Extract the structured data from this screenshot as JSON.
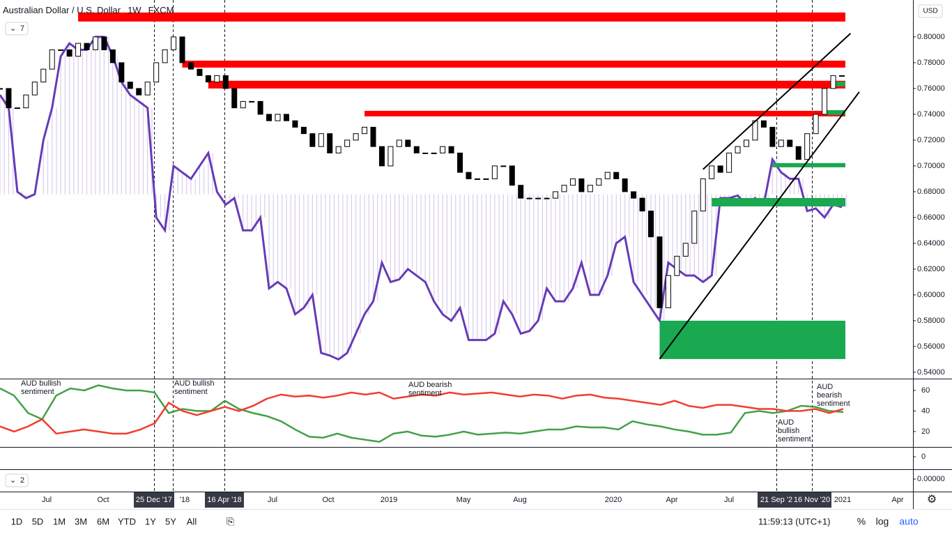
{
  "chart_data": {
    "type": "candlestick",
    "title": "Australian Dollar / U.S. Dollar",
    "interval": "1W",
    "source": "FXCM",
    "indicator_count": "7",
    "collapsed_count": "2",
    "currency": "USD",
    "ylim": [
      0.5351,
      0.8286
    ],
    "yticks": [
      {
        "value": 0.54,
        "label": "0.54000"
      },
      {
        "value": 0.56,
        "label": "0.56000"
      },
      {
        "value": 0.58,
        "label": "0.58000"
      },
      {
        "value": 0.6,
        "label": "0.60000"
      },
      {
        "value": 0.62,
        "label": "0.62000"
      },
      {
        "value": 0.64,
        "label": "0.64000"
      },
      {
        "value": 0.66,
        "label": "0.66000"
      },
      {
        "value": 0.68,
        "label": "0.68000"
      },
      {
        "value": 0.7,
        "label": "0.70000"
      },
      {
        "value": 0.72,
        "label": "0.72000"
      },
      {
        "value": 0.74,
        "label": "0.74000"
      },
      {
        "value": 0.76,
        "label": "0.76000"
      },
      {
        "value": 0.78,
        "label": "0.78000"
      },
      {
        "value": 0.8,
        "label": "0.80000"
      }
    ],
    "up_color": "#ffffff",
    "down_color": "#000000",
    "values": [
      0.76,
      0.745,
      0.745,
      0.755,
      0.765,
      0.775,
      0.79,
      0.79,
      0.785,
      0.795,
      0.79,
      0.8,
      0.79,
      0.78,
      0.765,
      0.76,
      0.755,
      0.765,
      0.78,
      0.79,
      0.8,
      0.78,
      0.775,
      0.77,
      0.765,
      0.77,
      0.76,
      0.745,
      0.75,
      0.75,
      0.74,
      0.735,
      0.74,
      0.735,
      0.73,
      0.725,
      0.715,
      0.725,
      0.71,
      0.715,
      0.72,
      0.725,
      0.73,
      0.715,
      0.7,
      0.715,
      0.72,
      0.715,
      0.71,
      0.71,
      0.71,
      0.715,
      0.71,
      0.695,
      0.69,
      0.69,
      0.69,
      0.7,
      0.7,
      0.685,
      0.675,
      0.675,
      0.675,
      0.675,
      0.68,
      0.685,
      0.69,
      0.68,
      0.685,
      0.69,
      0.695,
      0.69,
      0.68,
      0.675,
      0.665,
      0.645,
      0.59,
      0.615,
      0.63,
      0.64,
      0.665,
      0.69,
      0.7,
      0.695,
      0.71,
      0.715,
      0.72,
      0.735,
      0.73,
      0.715,
      0.72,
      0.715,
      0.705,
      0.725,
      0.74,
      0.76,
      0.77,
      0.77
    ],
    "positioning": {
      "color": "#673ab7",
      "fill": "#d9cdee",
      "baseline": 0.678,
      "values": [
        0.755,
        0.745,
        0.68,
        0.675,
        0.678,
        0.72,
        0.745,
        0.785,
        0.795,
        0.79,
        0.79,
        0.8,
        0.8,
        0.785,
        0.765,
        0.755,
        0.75,
        0.745,
        0.66,
        0.65,
        0.7,
        0.695,
        0.69,
        0.7,
        0.71,
        0.68,
        0.67,
        0.675,
        0.65,
        0.65,
        0.66,
        0.605,
        0.61,
        0.605,
        0.585,
        0.59,
        0.6,
        0.555,
        0.553,
        0.55,
        0.555,
        0.57,
        0.585,
        0.595,
        0.625,
        0.61,
        0.612,
        0.62,
        0.615,
        0.61,
        0.595,
        0.585,
        0.58,
        0.59,
        0.565,
        0.565,
        0.565,
        0.57,
        0.595,
        0.585,
        0.57,
        0.572,
        0.58,
        0.605,
        0.595,
        0.595,
        0.605,
        0.625,
        0.6,
        0.6,
        0.615,
        0.64,
        0.645,
        0.61,
        0.6,
        0.59,
        0.58,
        0.625,
        0.62,
        0.615,
        0.615,
        0.61,
        0.615,
        0.675,
        0.675,
        0.677,
        0.67,
        0.675,
        0.67,
        0.705,
        0.695,
        0.69,
        0.69,
        0.665,
        0.667,
        0.66,
        0.67,
        0.668
      ]
    },
    "zones": [
      {
        "color": "#ff0000",
        "start": 9,
        "top": 0.8189,
        "bottom": 0.8119
      },
      {
        "color": "#ff0000",
        "start": 21,
        "top": 0.7816,
        "bottom": 0.7762
      },
      {
        "color": "#ff0000",
        "start": 24,
        "top": 0.766,
        "bottom": 0.76
      },
      {
        "color": "#ff0000",
        "start": 42,
        "top": 0.7427,
        "bottom": 0.7384
      },
      {
        "color": "#1aa850",
        "start": 96,
        "top": 0.7654,
        "bottom": 0.7616
      },
      {
        "color": "#1aa850",
        "start": 95,
        "top": 0.7432,
        "bottom": 0.7395
      },
      {
        "color": "#1aa850",
        "start": 89,
        "top": 0.7022,
        "bottom": 0.6989
      },
      {
        "color": "#1aa850",
        "start": 82,
        "top": 0.6751,
        "bottom": 0.6686
      },
      {
        "color": "#1aa850",
        "start": 76,
        "top": 0.58,
        "bottom": 0.5503
      }
    ],
    "trendlines": [
      {
        "from": 76,
        "from_value": 0.5503,
        "to": 99,
        "to_value": 0.7573
      },
      {
        "from": 81,
        "from_value": 0.6973,
        "to": 98,
        "to_value": 0.8027
      }
    ],
    "sentiment": {
      "ylim": [
        5,
        71.5
      ],
      "yticks": [
        20,
        40,
        60
      ],
      "series": [
        {
          "color": "#43a047",
          "values": [
            62,
            55,
            38,
            32,
            55,
            62,
            60,
            65,
            62,
            60,
            60,
            58,
            38,
            42,
            40,
            40,
            50,
            42,
            38,
            35,
            30,
            22,
            15,
            14,
            18,
            14,
            12,
            10,
            18,
            20,
            16,
            15,
            17,
            20,
            17,
            18,
            19,
            18,
            20,
            22,
            22,
            25,
            24,
            24,
            22,
            30,
            27,
            25,
            22,
            20,
            17,
            17,
            19,
            38,
            40,
            38,
            40,
            45,
            44,
            40,
            39
          ]
        },
        {
          "color": "#f23c2e",
          "values": [
            25,
            20,
            25,
            32,
            18,
            20,
            22,
            20,
            18,
            18,
            22,
            28,
            48,
            40,
            36,
            40,
            44,
            40,
            45,
            52,
            56,
            54,
            55,
            53,
            55,
            58,
            56,
            58,
            52,
            54,
            56,
            55,
            58,
            56,
            57,
            58,
            56,
            54,
            56,
            55,
            52,
            55,
            56,
            53,
            52,
            50,
            48,
            46,
            50,
            45,
            43,
            46,
            46,
            44,
            42,
            42,
            40,
            40,
            42,
            38,
            42
          ]
        }
      ],
      "annotations": [
        {
          "lines": [
            "AUD bullish",
            "sentiment"
          ]
        },
        {
          "lines": [
            "AUD bullish",
            "sentiment"
          ]
        },
        {
          "lines": [
            "AUD bearish",
            "sentiment"
          ]
        },
        {
          "lines": [
            "AUD",
            "bearish",
            "sentiment"
          ]
        },
        {
          "lines": [
            "AUD",
            "bullish",
            "sentiment"
          ]
        }
      ]
    },
    "pane3_tick": 0,
    "pane4_tick": {
      "value": 0,
      "label": "0.00000"
    },
    "time_labels": [
      "Jul",
      "Oct",
      "25 Dec '17",
      "'18",
      "16 Apr '18",
      "Jul",
      "Oct",
      "2019",
      "May",
      "Aug",
      "2020",
      "Apr",
      "Jul",
      "21 Sep '2",
      "16 Nov '20",
      "2021",
      "Apr"
    ],
    "ranges": [
      "1D",
      "5D",
      "1M",
      "3M",
      "6M",
      "YTD",
      "1Y",
      "5Y",
      "All"
    ],
    "clock": "11:59:13 (UTC+1)",
    "scale_options": [
      "%",
      "log",
      "auto"
    ]
  }
}
